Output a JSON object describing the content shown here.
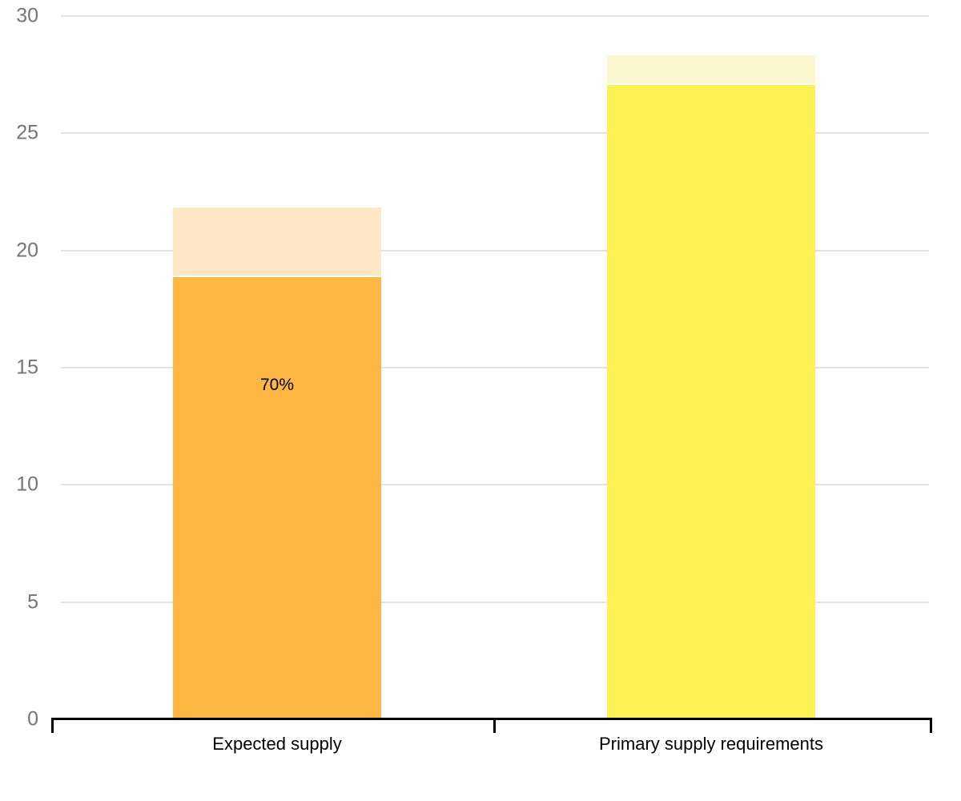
{
  "chart_data": {
    "type": "bar",
    "stacked": true,
    "title": "",
    "xlabel": "",
    "ylabel": "",
    "ylim": [
      0,
      30
    ],
    "yticks": [
      0,
      5,
      10,
      15,
      20,
      25,
      30
    ],
    "grid": true,
    "legend": false,
    "categories": [
      "Expected supply",
      "Primary supply requirements"
    ],
    "bars": [
      {
        "category": "Expected supply",
        "total": 21.7,
        "segments": [
          {
            "value": 18.8,
            "color": "#FDB844",
            "label": "70%"
          },
          {
            "value": 2.9,
            "color": "#FDE7C6",
            "label": ""
          }
        ]
      },
      {
        "category": "Primary supply requirements",
        "total": 28.2,
        "segments": [
          {
            "value": 27.0,
            "color": "#FDF155",
            "label": ""
          },
          {
            "value": 1.2,
            "color": "#FBF8D0",
            "label": ""
          }
        ]
      }
    ],
    "style": {
      "grid_color": "#E2E2E2",
      "axis_color": "#000000",
      "y_tick_label_color": "#757575",
      "category_label_color": "#000000",
      "segment_label_color": "#000000"
    }
  }
}
